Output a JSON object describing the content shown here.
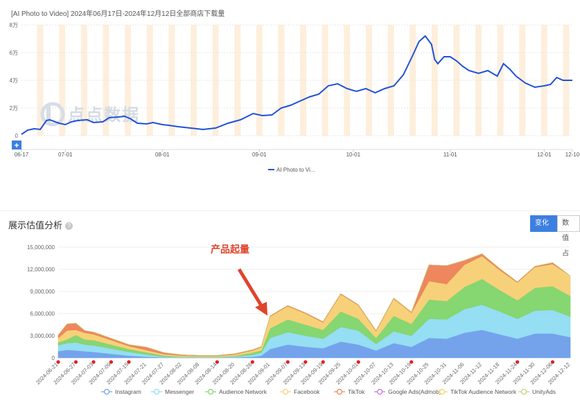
{
  "top_chart_title": "[AI Photo to Video] 2024年06月17日-2024年12月12日全部商店下载量",
  "section": {
    "title": "展示估值分析",
    "help_icon": "question-circle-icon",
    "tabs": [
      "变化趋势",
      "数值占"
    ]
  },
  "watermark": {
    "logo_icon": "diandian-logo-icon",
    "text": "点点数据"
  },
  "zoom_button_label": "+",
  "chart_data": [
    {
      "type": "line",
      "title": "[AI Photo to Video] 2024年06月17日-2024年12月12日全部商店下载量",
      "x_tick_labels": [
        "06-17",
        "07-01",
        "08-01",
        "09-01",
        "10-01",
        "11-01",
        "12-01",
        "12-10"
      ],
      "y_tick_labels": [
        "0",
        "2万",
        "4万",
        "6万",
        "8万"
      ],
      "ylim": [
        0,
        80000
      ],
      "legend": {
        "position": "bottom",
        "entries": [
          "AI Photo to Vi..."
        ]
      },
      "grid": true,
      "weekend_bands": true,
      "series": [
        {
          "name": "AI Photo to Vi...",
          "color": "#1f4fd8",
          "x": [
            "06-17",
            "06-19",
            "06-21",
            "06-23",
            "06-25",
            "06-26",
            "06-29",
            "07-01",
            "07-03",
            "07-05",
            "07-08",
            "07-10",
            "07-13",
            "07-15",
            "07-18",
            "07-20",
            "07-22",
            "07-24",
            "07-27",
            "07-29",
            "08-01",
            "08-03",
            "08-06",
            "08-10",
            "08-14",
            "08-18",
            "08-22",
            "08-26",
            "08-30",
            "09-02",
            "09-05",
            "09-08",
            "09-11",
            "09-14",
            "09-17",
            "09-20",
            "09-23",
            "09-26",
            "09-29",
            "10-02",
            "10-05",
            "10-08",
            "10-11",
            "10-14",
            "10-17",
            "10-20",
            "10-22",
            "10-24",
            "10-26",
            "10-27",
            "10-28",
            "10-30",
            "11-01",
            "11-03",
            "11-05",
            "11-07",
            "11-10",
            "11-13",
            "11-16",
            "11-18",
            "11-20",
            "11-22",
            "11-25",
            "11-28",
            "12-01",
            "12-03",
            "12-05",
            "12-07",
            "12-10"
          ],
          "values": [
            1000,
            4000,
            5000,
            4500,
            11000,
            11500,
            9000,
            8000,
            10000,
            11000,
            11500,
            9500,
            10000,
            13000,
            13500,
            14000,
            12000,
            9000,
            8500,
            9500,
            8000,
            7500,
            6500,
            5500,
            4500,
            5500,
            9000,
            11500,
            16000,
            14500,
            15000,
            20000,
            22000,
            25000,
            28000,
            30000,
            36000,
            37500,
            34000,
            32000,
            34000,
            31000,
            34000,
            36000,
            44000,
            58000,
            68000,
            72000,
            66000,
            55000,
            52000,
            57000,
            57000,
            54000,
            50000,
            47000,
            45000,
            47000,
            43000,
            52000,
            48000,
            43000,
            38000,
            35000,
            36000,
            37000,
            42000,
            40000,
            40000
          ]
        }
      ]
    },
    {
      "type": "area",
      "stacked": true,
      "x_tick_labels": [
        "2024-06-21",
        "2024-06-27",
        "2024-07-03",
        "2024-07-09",
        "2024-07-15",
        "2024-07-21",
        "2024-07-27",
        "2024-08-02",
        "2024-08-08",
        "2024-08-14",
        "2024-08-20",
        "2024-08-26",
        "2024-09-01",
        "2024-09-07",
        "2024-09-13",
        "2024-09-19",
        "2024-09-25",
        "2024-10-01",
        "2024-10-07",
        "2024-10-13",
        "2024-10-19",
        "2024-10-25",
        "2024-10-31",
        "2024-11-06",
        "2024-11-12",
        "2024-11-18",
        "2024-11-24",
        "2024-11-30",
        "2024-12-06",
        "2024-12-12"
      ],
      "y_tick_labels": [
        "0",
        "3,000,000",
        "6,000,000",
        "9,000,000",
        "12,000,000",
        "15,000,000"
      ],
      "ylim": [
        0,
        15000000
      ],
      "annotation": {
        "text": "产品起量",
        "color": "#e0442b",
        "arrow": true
      },
      "legend": {
        "position": "bottom",
        "entries": [
          "Instagram",
          "Messenger",
          "Audience Network",
          "Facebook",
          "TikTok",
          "Google Ads(Admob)",
          "TikTok Audience Network",
          "UnityAds"
        ]
      },
      "event_markers": [
        "2024-06-21",
        "2024-06-27",
        "2024-07-03",
        "2024-07-09",
        "2024-07-15",
        "2024-08-14",
        "2024-08-26",
        "2024-09-07",
        "2024-09-13",
        "2024-09-19",
        "2024-10-01",
        "2024-10-19",
        "2024-11-24",
        "2024-12-06"
      ],
      "categories": [
        "2024-06-21",
        "2024-06-24",
        "2024-06-27",
        "2024-06-30",
        "2024-07-03",
        "2024-07-15",
        "2024-07-21",
        "2024-07-27",
        "2024-08-02",
        "2024-08-08",
        "2024-08-14",
        "2024-08-20",
        "2024-08-26",
        "2024-08-29",
        "2024-09-01",
        "2024-09-07",
        "2024-09-13",
        "2024-09-19",
        "2024-09-25",
        "2024-10-01",
        "2024-10-07",
        "2024-10-13",
        "2024-10-19",
        "2024-10-25",
        "2024-10-31",
        "2024-11-06",
        "2024-11-12",
        "2024-11-18",
        "2024-11-24",
        "2024-11-30",
        "2024-12-06",
        "2024-12-12"
      ],
      "series": [
        {
          "name": "Instagram",
          "color": "#6d9eeb",
          "values": [
            900000,
            1100000,
            1000000,
            900000,
            800000,
            300000,
            150000,
            50000,
            30000,
            30000,
            30000,
            60000,
            150000,
            300000,
            1200000,
            1800000,
            1500000,
            1300000,
            2200000,
            1800000,
            1000000,
            2000000,
            1500000,
            2700000,
            2600000,
            3400000,
            3800000,
            3200000,
            2600000,
            3300000,
            3300000,
            2800000
          ]
        },
        {
          "name": "Messenger",
          "color": "#8fdcf2",
          "values": [
            800000,
            900000,
            1100000,
            900000,
            900000,
            500000,
            300000,
            100000,
            50000,
            50000,
            50000,
            100000,
            250000,
            400000,
            1500000,
            1700000,
            1500000,
            1300000,
            2000000,
            1900000,
            900000,
            1600000,
            1500000,
            2600000,
            2600000,
            3200000,
            3400000,
            3100000,
            2700000,
            3100000,
            3200000,
            2800000
          ]
        },
        {
          "name": "Audience Network",
          "color": "#7fd46a",
          "values": [
            400000,
            500000,
            1000000,
            700000,
            700000,
            400000,
            300000,
            150000,
            80000,
            60000,
            60000,
            100000,
            300000,
            300000,
            1300000,
            1700000,
            1500000,
            1200000,
            2100000,
            1600000,
            800000,
            2100000,
            1600000,
            2600000,
            2500000,
            3000000,
            3500000,
            2900000,
            2500000,
            3100000,
            3200000,
            2800000
          ]
        },
        {
          "name": "Facebook",
          "color": "#f7cf73",
          "values": [
            600000,
            1200000,
            700000,
            900000,
            800000,
            400000,
            300000,
            200000,
            150000,
            120000,
            120000,
            200000,
            300000,
            450000,
            1600000,
            1800000,
            1500000,
            1000000,
            2300000,
            1800000,
            900000,
            2300000,
            1500000,
            2500000,
            2300000,
            3000000,
            3100000,
            2700000,
            2400000,
            2800000,
            3000000,
            2700000
          ]
        },
        {
          "name": "TikTok",
          "color": "#ee8155",
          "values": [
            400000,
            900000,
            900000,
            300000,
            300000,
            200000,
            400000,
            200000,
            100000,
            80000,
            80000,
            100000,
            100000,
            80000,
            100000,
            100000,
            100000,
            100000,
            100000,
            100000,
            100000,
            100000,
            100000,
            2200000,
            2500000,
            600000,
            300000,
            200000,
            100000,
            100000,
            200000,
            0
          ]
        },
        {
          "name": "Google Ads(Admob)",
          "color": "#c86ddb",
          "values": [
            0,
            0,
            0,
            0,
            0,
            0,
            0,
            0,
            0,
            0,
            0,
            0,
            0,
            0,
            0,
            0,
            0,
            0,
            0,
            0,
            0,
            0,
            0,
            0,
            0,
            0,
            0,
            0,
            0,
            0,
            0,
            0
          ]
        },
        {
          "name": "TikTok Audience Network",
          "color": "#f0d55f",
          "values": [
            0,
            0,
            0,
            0,
            0,
            0,
            0,
            0,
            0,
            0,
            0,
            0,
            0,
            0,
            0,
            0,
            0,
            0,
            0,
            0,
            0,
            0,
            0,
            0,
            0,
            0,
            0,
            0,
            0,
            0,
            0,
            0
          ]
        },
        {
          "name": "UnityAds",
          "color": "#bcd47a",
          "values": [
            0,
            0,
            0,
            0,
            0,
            0,
            0,
            0,
            0,
            0,
            0,
            0,
            0,
            0,
            0,
            0,
            0,
            0,
            0,
            0,
            0,
            0,
            0,
            0,
            0,
            0,
            0,
            0,
            0,
            0,
            0,
            0
          ]
        }
      ]
    }
  ]
}
